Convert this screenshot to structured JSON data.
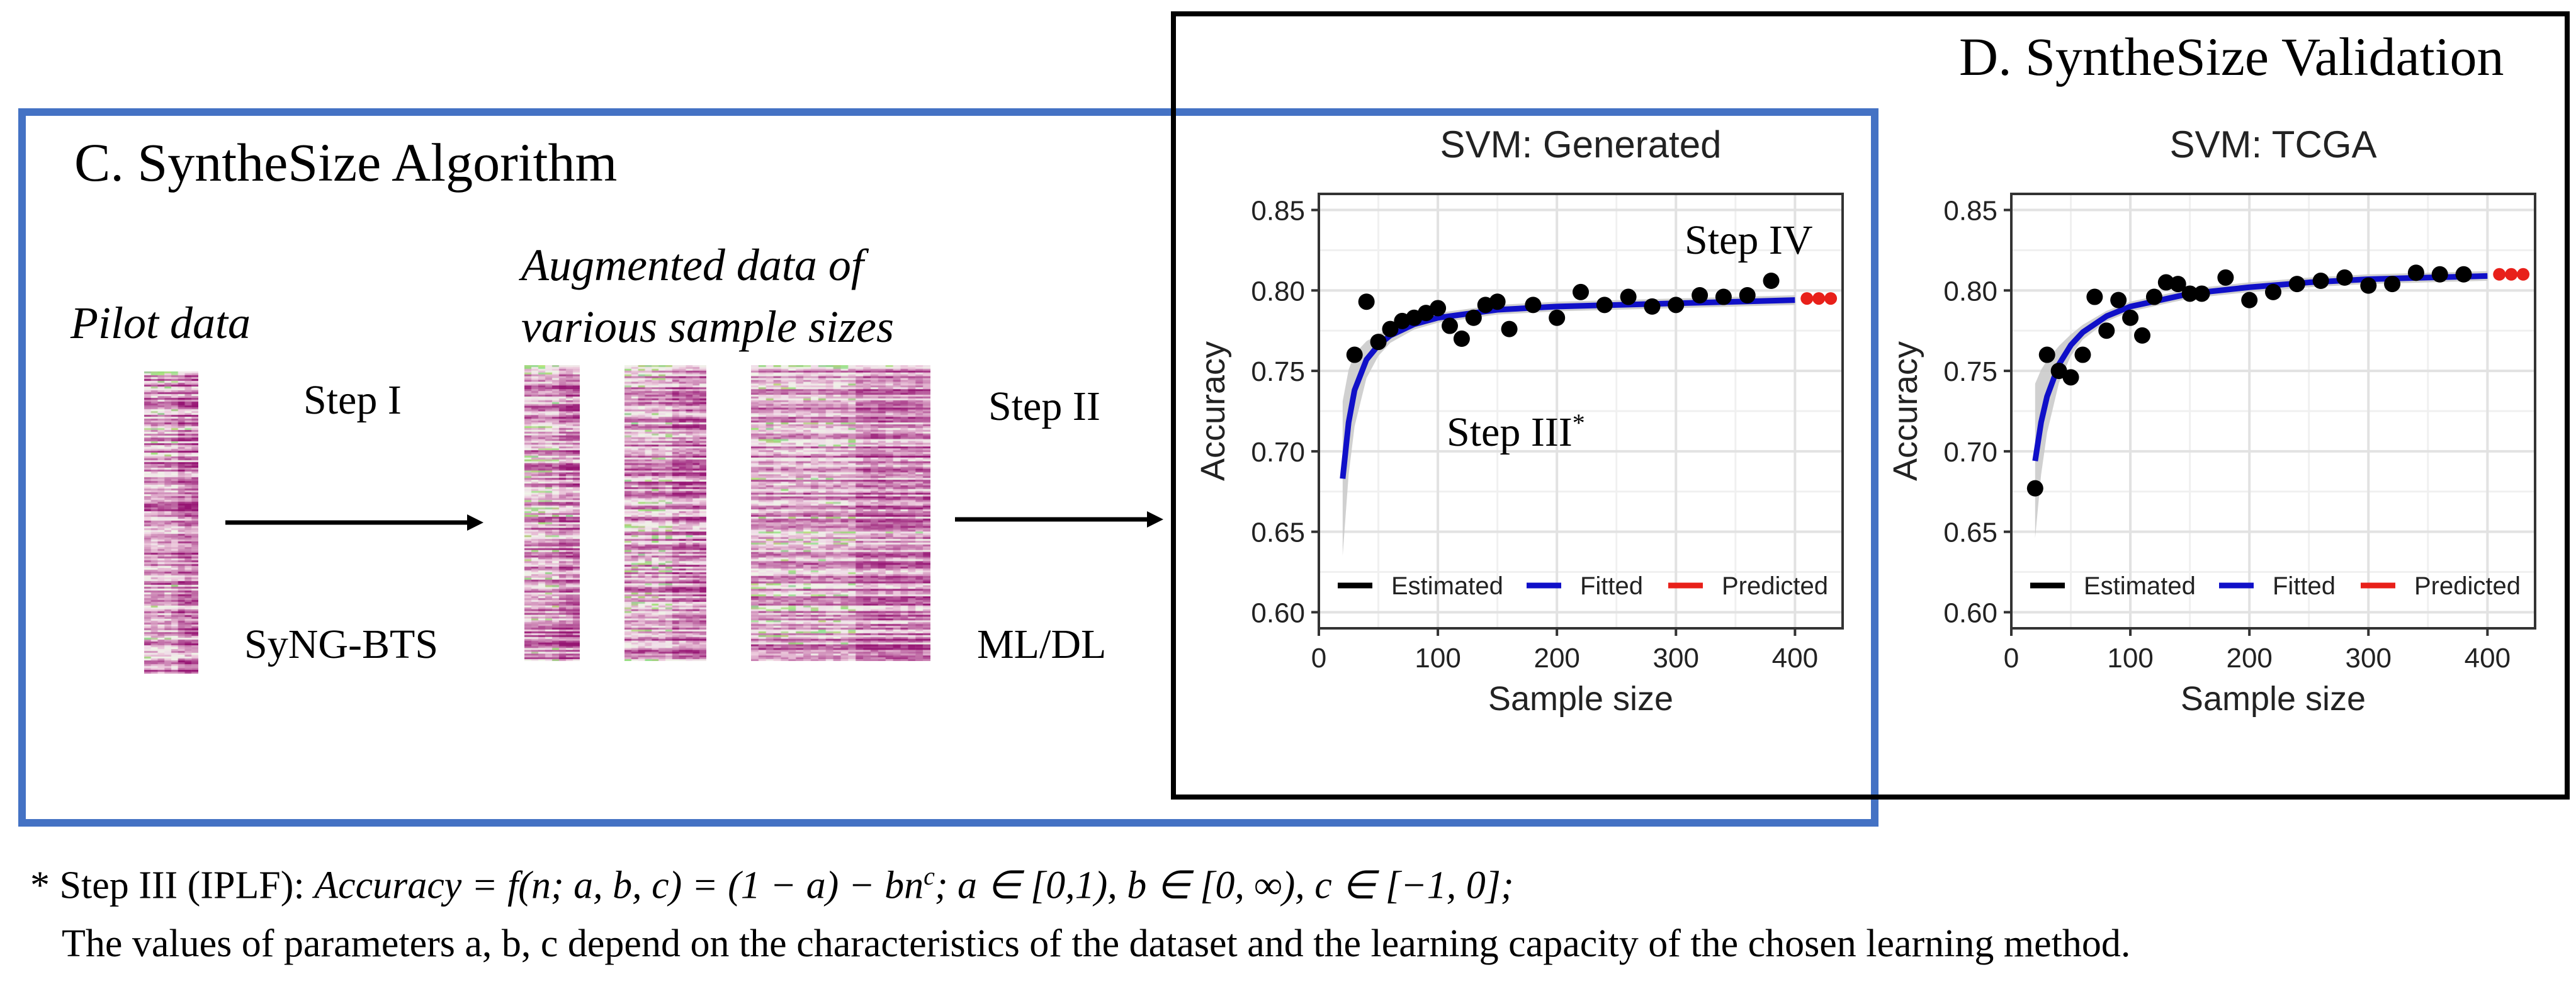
{
  "panel_c": {
    "title": "C. SyntheSize Algorithm",
    "pilot_label": "Pilot data",
    "augmented_label_line1": "Augmented data of",
    "augmented_label_line2": "various sample sizes",
    "step1": "Step I",
    "step1_method": "SyNG-BTS",
    "step2": "Step II",
    "step2_method": "ML/DL"
  },
  "panel_d": {
    "title": "D. SyntheSize Validation"
  },
  "annotations": {
    "step3": "Step III",
    "step3_sup": "*",
    "step4": "Step IV"
  },
  "legend": {
    "estimated": "Estimated",
    "fitted": "Fitted",
    "predicted": "Predicted"
  },
  "colors": {
    "estimated": "#000000",
    "fitted": "#1010c8",
    "predicted": "#e8201a",
    "band": "#c8c8c8",
    "box_c": "#4472C4"
  },
  "chart_data": [
    {
      "type": "scatter",
      "title": "SVM: Generated",
      "xlabel": "Sample size",
      "ylabel": "Accuracy",
      "xlim": [
        0,
        440
      ],
      "ylim": [
        0.59,
        0.86
      ],
      "x_ticks": [
        0,
        100,
        200,
        300,
        400
      ],
      "y_ticks": [
        0.6,
        0.65,
        0.7,
        0.75,
        0.8,
        0.85
      ],
      "grid": true,
      "legend_position": "bottom-inside",
      "series": [
        {
          "name": "Estimated",
          "x": [
            30,
            40,
            50,
            60,
            70,
            80,
            90,
            100,
            110,
            120,
            130,
            140,
            150,
            160,
            180,
            200,
            220,
            240,
            260,
            280,
            300,
            320,
            340,
            360,
            380
          ],
          "y": [
            0.76,
            0.793,
            0.768,
            0.776,
            0.781,
            0.783,
            0.786,
            0.789,
            0.778,
            0.77,
            0.783,
            0.791,
            0.793,
            0.776,
            0.791,
            0.783,
            0.799,
            0.791,
            0.796,
            0.79,
            0.791,
            0.797,
            0.796,
            0.797,
            0.806
          ]
        },
        {
          "name": "Fitted",
          "model": "(1 - a) - b*n^c",
          "x": [
            20,
            25,
            30,
            40,
            50,
            60,
            80,
            100,
            150,
            200,
            250,
            300,
            350,
            400
          ],
          "y": [
            0.683,
            0.718,
            0.738,
            0.757,
            0.766,
            0.772,
            0.779,
            0.783,
            0.788,
            0.79,
            0.791,
            0.792,
            0.793,
            0.794
          ]
        },
        {
          "name": "Predicted",
          "x": [
            410,
            420,
            430
          ],
          "y": [
            0.795,
            0.795,
            0.795
          ]
        }
      ]
    },
    {
      "type": "scatter",
      "title": "SVM: TCGA",
      "xlabel": "Sample size",
      "ylabel": "Accuracy",
      "xlim": [
        0,
        440
      ],
      "ylim": [
        0.59,
        0.86
      ],
      "x_ticks": [
        0,
        100,
        200,
        300,
        400
      ],
      "y_ticks": [
        0.6,
        0.65,
        0.7,
        0.75,
        0.8,
        0.85
      ],
      "grid": true,
      "legend_position": "bottom-inside",
      "series": [
        {
          "name": "Estimated",
          "x": [
            20,
            30,
            40,
            50,
            60,
            70,
            80,
            90,
            100,
            110,
            120,
            130,
            140,
            150,
            160,
            180,
            200,
            220,
            240,
            260,
            280,
            300,
            320,
            340,
            360,
            380
          ],
          "y": [
            0.677,
            0.76,
            0.75,
            0.746,
            0.76,
            0.796,
            0.775,
            0.794,
            0.783,
            0.772,
            0.796,
            0.805,
            0.804,
            0.798,
            0.798,
            0.808,
            0.794,
            0.799,
            0.804,
            0.806,
            0.808,
            0.803,
            0.804,
            0.811,
            0.81,
            0.81
          ]
        },
        {
          "name": "Fitted",
          "model": "(1 - a) - b*n^c",
          "x": [
            20,
            25,
            30,
            40,
            50,
            60,
            80,
            100,
            150,
            200,
            250,
            300,
            350,
            400
          ],
          "y": [
            0.694,
            0.718,
            0.734,
            0.754,
            0.766,
            0.774,
            0.784,
            0.79,
            0.798,
            0.802,
            0.805,
            0.807,
            0.808,
            0.809
          ]
        },
        {
          "name": "Predicted",
          "x": [
            410,
            420,
            430
          ],
          "y": [
            0.81,
            0.81,
            0.81
          ]
        }
      ]
    }
  ],
  "footnote": {
    "marker": "*",
    "lead": "Step III (IPLF): ",
    "formula": "Accuracy = f(n; a, b, c) = (1 − a) − bn",
    "formula_exp": "c",
    "domain": ";  a ∈ [0,1), b ∈ [0, ∞), c ∈ [−1, 0];",
    "line2": "The values of parameters a,  b, c depend on the characteristics of the dataset and the learning capacity of the chosen learning method."
  }
}
